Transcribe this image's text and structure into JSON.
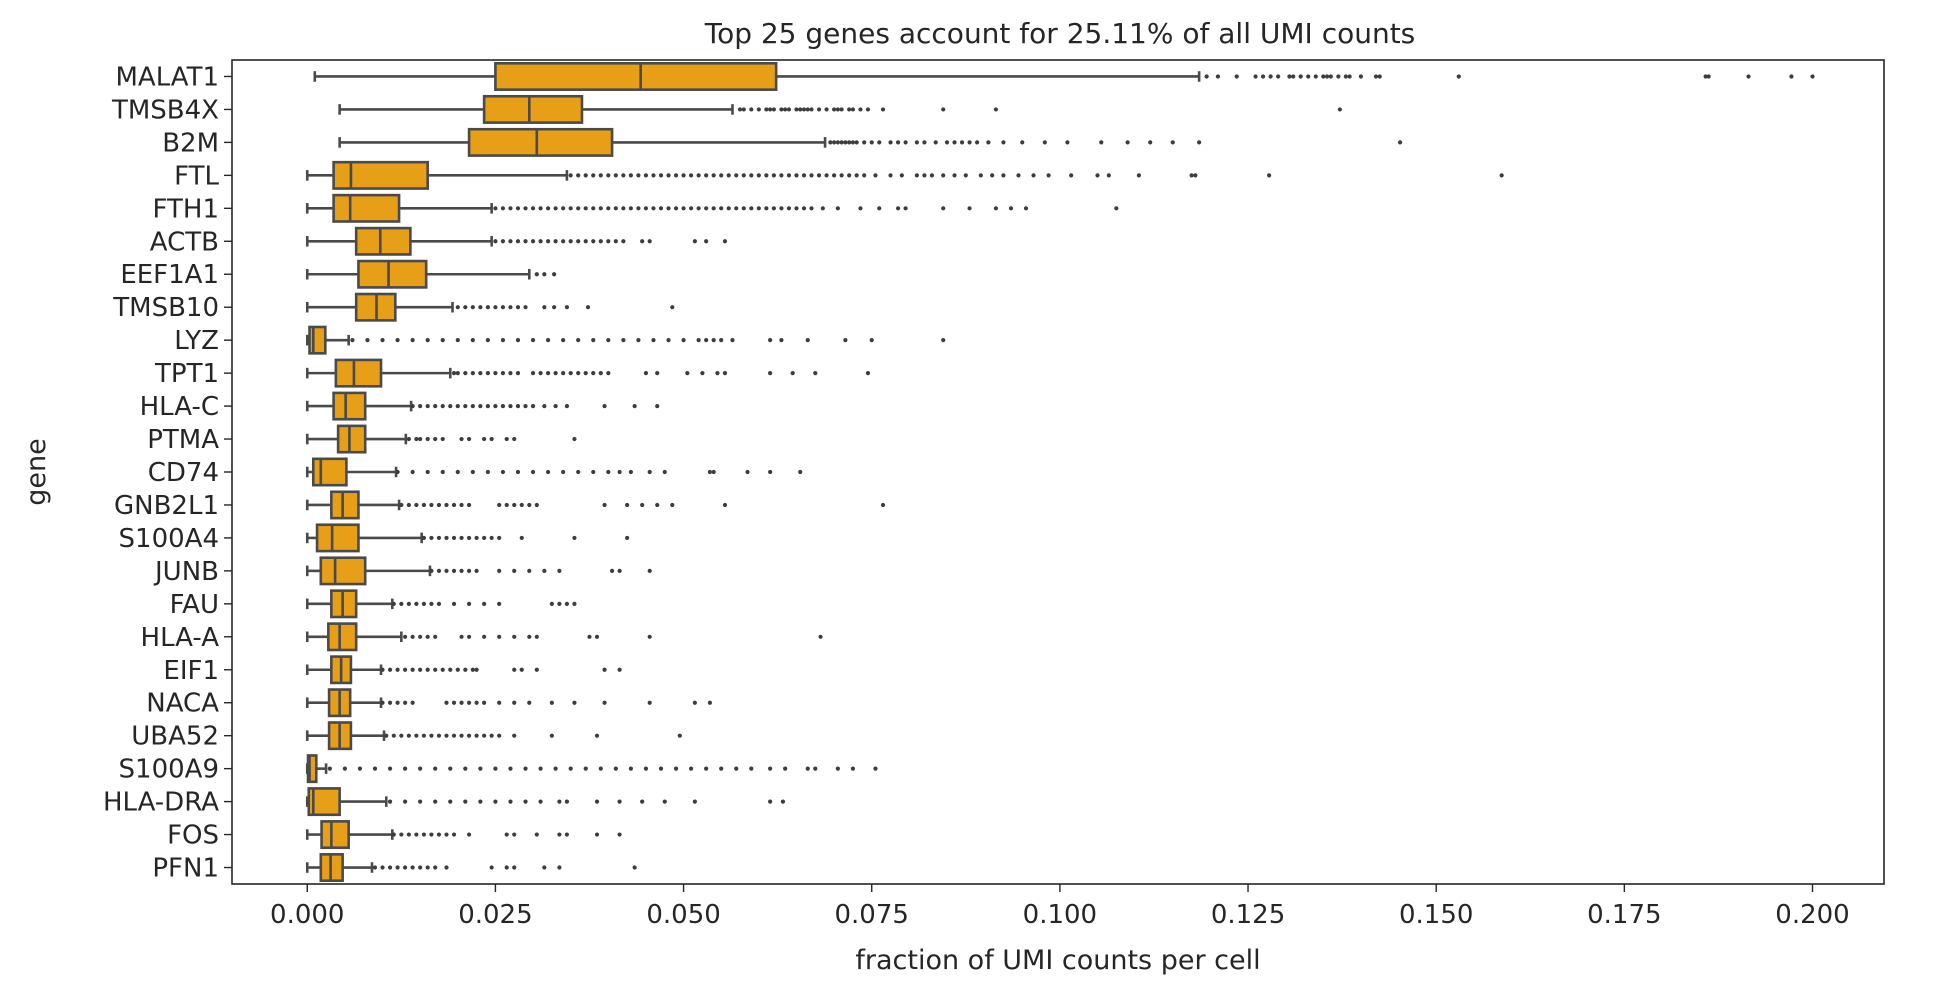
{
  "chart_data": {
    "type": "box",
    "orientation": "horizontal",
    "title": "Top 25 genes account for 25.11% of all UMI counts",
    "xlabel": "fraction of UMI counts per cell",
    "ylabel": "gene",
    "xlim": [
      -0.01,
      0.2095
    ],
    "xticks": [
      0.0,
      0.025,
      0.05,
      0.075,
      0.1,
      0.125,
      0.15,
      0.175,
      0.2
    ],
    "xtick_labels": [
      "0.000",
      "0.025",
      "0.050",
      "0.075",
      "0.100",
      "0.125",
      "0.150",
      "0.175",
      "0.200"
    ],
    "grid": false,
    "legend": "none",
    "colors": {
      "box_fill": "#e69f16",
      "box_edge": "#4a4a4a",
      "outlier": "#3d3d3d"
    },
    "series": [
      {
        "gene": "MALAT1",
        "whisker_low": 0.001,
        "q1": 0.025,
        "median": 0.0443,
        "q3": 0.0623,
        "whisker_high": 0.1185,
        "outliers": [
          0.1195,
          0.121,
          0.1235,
          0.126,
          0.127,
          0.128,
          0.129,
          0.1305,
          0.131,
          0.132,
          0.133,
          0.134,
          0.135,
          0.1355,
          0.136,
          0.137,
          0.138,
          0.1385,
          0.14,
          0.142,
          0.1425,
          0.153,
          0.1858,
          0.1862,
          0.1915,
          0.1972,
          0.2
        ]
      },
      {
        "gene": "TMSB4X",
        "whisker_low": 0.0043,
        "q1": 0.0235,
        "median": 0.0295,
        "q3": 0.0365,
        "whisker_high": 0.0565,
        "outliers": [
          0.0575,
          0.058,
          0.059,
          0.06,
          0.061,
          0.0615,
          0.062,
          0.063,
          0.0635,
          0.064,
          0.065,
          0.0655,
          0.066,
          0.0665,
          0.067,
          0.068,
          0.069,
          0.07,
          0.0705,
          0.071,
          0.072,
          0.0725,
          0.0735,
          0.0745,
          0.0765,
          0.0845,
          0.0915,
          0.1372
        ]
      },
      {
        "gene": "B2M",
        "whisker_low": 0.0043,
        "q1": 0.0215,
        "median": 0.0305,
        "q3": 0.0405,
        "whisker_high": 0.0688,
        "outliers": [
          0.0695,
          0.07,
          0.0705,
          0.071,
          0.0715,
          0.072,
          0.0725,
          0.073,
          0.074,
          0.075,
          0.076,
          0.0775,
          0.0785,
          0.0795,
          0.081,
          0.082,
          0.0835,
          0.085,
          0.086,
          0.087,
          0.088,
          0.089,
          0.0905,
          0.0925,
          0.095,
          0.098,
          0.101,
          0.1055,
          0.109,
          0.112,
          0.115,
          0.1185,
          0.1452
        ]
      },
      {
        "gene": "FTL",
        "whisker_low": 0.0,
        "q1": 0.0035,
        "median": 0.0058,
        "q3": 0.016,
        "whisker_high": 0.0345,
        "outliers": [
          0.035,
          0.036,
          0.037,
          0.038,
          0.039,
          0.04,
          0.041,
          0.042,
          0.043,
          0.044,
          0.045,
          0.046,
          0.047,
          0.048,
          0.049,
          0.05,
          0.051,
          0.052,
          0.053,
          0.054,
          0.055,
          0.056,
          0.057,
          0.058,
          0.059,
          0.06,
          0.061,
          0.062,
          0.063,
          0.064,
          0.065,
          0.066,
          0.067,
          0.068,
          0.069,
          0.07,
          0.071,
          0.072,
          0.073,
          0.074,
          0.0755,
          0.0775,
          0.079,
          0.081,
          0.082,
          0.083,
          0.0845,
          0.086,
          0.0875,
          0.0895,
          0.091,
          0.0925,
          0.0945,
          0.0965,
          0.0985,
          0.1015,
          0.105,
          0.1065,
          0.1105,
          0.1175,
          0.118,
          0.1278,
          0.1587
        ]
      },
      {
        "gene": "FTH1",
        "whisker_low": 0.0,
        "q1": 0.0035,
        "median": 0.0057,
        "q3": 0.0122,
        "whisker_high": 0.0245,
        "outliers": [
          0.025,
          0.026,
          0.027,
          0.028,
          0.029,
          0.03,
          0.031,
          0.032,
          0.033,
          0.034,
          0.035,
          0.036,
          0.037,
          0.038,
          0.039,
          0.04,
          0.041,
          0.042,
          0.043,
          0.044,
          0.045,
          0.046,
          0.047,
          0.048,
          0.049,
          0.05,
          0.051,
          0.052,
          0.053,
          0.054,
          0.055,
          0.056,
          0.057,
          0.058,
          0.059,
          0.06,
          0.061,
          0.062,
          0.063,
          0.064,
          0.065,
          0.066,
          0.067,
          0.0685,
          0.0705,
          0.0735,
          0.076,
          0.0785,
          0.0795,
          0.0845,
          0.088,
          0.0915,
          0.0935,
          0.0955,
          0.1075
        ]
      },
      {
        "gene": "ACTB",
        "whisker_low": 0.0,
        "q1": 0.0065,
        "median": 0.0097,
        "q3": 0.0137,
        "whisker_high": 0.0245,
        "outliers": [
          0.025,
          0.026,
          0.027,
          0.028,
          0.029,
          0.03,
          0.031,
          0.032,
          0.033,
          0.034,
          0.035,
          0.036,
          0.037,
          0.038,
          0.039,
          0.04,
          0.041,
          0.042,
          0.0445,
          0.0455,
          0.0515,
          0.053,
          0.0555
        ]
      },
      {
        "gene": "EEF1A1",
        "whisker_low": 0.0,
        "q1": 0.0068,
        "median": 0.0108,
        "q3": 0.0158,
        "whisker_high": 0.0295,
        "outliers": [
          0.0305,
          0.0315,
          0.0328
        ]
      },
      {
        "gene": "TMSB10",
        "whisker_low": 0.0,
        "q1": 0.0065,
        "median": 0.0092,
        "q3": 0.0117,
        "whisker_high": 0.0193,
        "outliers": [
          0.02,
          0.021,
          0.022,
          0.023,
          0.024,
          0.025,
          0.026,
          0.027,
          0.028,
          0.029,
          0.0315,
          0.0328,
          0.0345,
          0.0373,
          0.0485
        ]
      },
      {
        "gene": "LYZ",
        "whisker_low": 0.0,
        "q1": 0.0003,
        "median": 0.0008,
        "q3": 0.0024,
        "whisker_high": 0.0055,
        "outliers": [
          0.006,
          0.008,
          0.01,
          0.012,
          0.014,
          0.016,
          0.018,
          0.02,
          0.022,
          0.024,
          0.026,
          0.028,
          0.03,
          0.032,
          0.034,
          0.036,
          0.038,
          0.04,
          0.042,
          0.044,
          0.046,
          0.048,
          0.05,
          0.052,
          0.053,
          0.054,
          0.055,
          0.0565,
          0.0615,
          0.063,
          0.0665,
          0.0715,
          0.075,
          0.0845
        ]
      },
      {
        "gene": "TPT1",
        "whisker_low": 0.0,
        "q1": 0.0038,
        "median": 0.0062,
        "q3": 0.0098,
        "whisker_high": 0.019,
        "outliers": [
          0.0195,
          0.02,
          0.021,
          0.022,
          0.023,
          0.024,
          0.025,
          0.026,
          0.027,
          0.028,
          0.03,
          0.031,
          0.032,
          0.033,
          0.034,
          0.035,
          0.036,
          0.037,
          0.038,
          0.039,
          0.04,
          0.045,
          0.0465,
          0.0505,
          0.0525,
          0.0545,
          0.0555,
          0.0615,
          0.0645,
          0.0675,
          0.0745
        ]
      },
      {
        "gene": "HLA-C",
        "whisker_low": 0.0,
        "q1": 0.0035,
        "median": 0.0051,
        "q3": 0.0077,
        "whisker_high": 0.0138,
        "outliers": [
          0.014,
          0.015,
          0.016,
          0.017,
          0.018,
          0.019,
          0.02,
          0.021,
          0.022,
          0.023,
          0.024,
          0.025,
          0.026,
          0.027,
          0.028,
          0.029,
          0.03,
          0.0315,
          0.033,
          0.0345,
          0.0395,
          0.0435,
          0.0465
        ]
      },
      {
        "gene": "PTMA",
        "whisker_low": 0.0,
        "q1": 0.0041,
        "median": 0.0056,
        "q3": 0.0077,
        "whisker_high": 0.0131,
        "outliers": [
          0.0135,
          0.0145,
          0.015,
          0.016,
          0.017,
          0.018,
          0.0205,
          0.0215,
          0.0235,
          0.0245,
          0.0265,
          0.0275,
          0.0355
        ]
      },
      {
        "gene": "CD74",
        "whisker_low": 0.0,
        "q1": 0.0008,
        "median": 0.0018,
        "q3": 0.0052,
        "whisker_high": 0.0118,
        "outliers": [
          0.012,
          0.014,
          0.016,
          0.018,
          0.02,
          0.022,
          0.024,
          0.026,
          0.028,
          0.03,
          0.032,
          0.034,
          0.036,
          0.038,
          0.04,
          0.0415,
          0.043,
          0.0455,
          0.0475,
          0.0535,
          0.054,
          0.0585,
          0.0615,
          0.0655
        ]
      },
      {
        "gene": "GNB2L1",
        "whisker_low": 0.0,
        "q1": 0.0032,
        "median": 0.0047,
        "q3": 0.0068,
        "whisker_high": 0.0122,
        "outliers": [
          0.0125,
          0.0135,
          0.0145,
          0.0155,
          0.0165,
          0.0175,
          0.0185,
          0.0195,
          0.0205,
          0.0215,
          0.0255,
          0.0265,
          0.0275,
          0.0285,
          0.0295,
          0.0305,
          0.0395,
          0.0425,
          0.0445,
          0.0465,
          0.0485,
          0.0555,
          0.0765
        ]
      },
      {
        "gene": "S100A4",
        "whisker_low": 0.0,
        "q1": 0.0013,
        "median": 0.0033,
        "q3": 0.0068,
        "whisker_high": 0.0152,
        "outliers": [
          0.0155,
          0.0165,
          0.0175,
          0.0185,
          0.0195,
          0.0205,
          0.0215,
          0.0225,
          0.0235,
          0.0245,
          0.0255,
          0.0285,
          0.0355,
          0.0425
        ]
      },
      {
        "gene": "JUNB",
        "whisker_low": 0.0,
        "q1": 0.0018,
        "median": 0.0037,
        "q3": 0.0077,
        "whisker_high": 0.0163,
        "outliers": [
          0.0165,
          0.0175,
          0.0185,
          0.0195,
          0.0205,
          0.0215,
          0.0225,
          0.0255,
          0.0275,
          0.0295,
          0.0315,
          0.0335,
          0.0405,
          0.0415,
          0.0455
        ]
      },
      {
        "gene": "FAU",
        "whisker_low": 0.0,
        "q1": 0.0032,
        "median": 0.0047,
        "q3": 0.0065,
        "whisker_high": 0.0113,
        "outliers": [
          0.0115,
          0.0125,
          0.0135,
          0.0145,
          0.0155,
          0.0165,
          0.0175,
          0.0195,
          0.0215,
          0.0235,
          0.0255,
          0.0325,
          0.0335,
          0.0345,
          0.0355
        ]
      },
      {
        "gene": "HLA-A",
        "whisker_low": 0.0,
        "q1": 0.0028,
        "median": 0.0043,
        "q3": 0.0065,
        "whisker_high": 0.0125,
        "outliers": [
          0.013,
          0.014,
          0.015,
          0.016,
          0.017,
          0.0205,
          0.0215,
          0.0235,
          0.0255,
          0.0275,
          0.0295,
          0.0305,
          0.0375,
          0.0385,
          0.0455,
          0.0682
        ]
      },
      {
        "gene": "EIF1",
        "whisker_low": 0.0,
        "q1": 0.0032,
        "median": 0.0045,
        "q3": 0.0058,
        "whisker_high": 0.0098,
        "outliers": [
          0.01,
          0.011,
          0.012,
          0.013,
          0.014,
          0.015,
          0.016,
          0.017,
          0.018,
          0.019,
          0.02,
          0.021,
          0.022,
          0.0225,
          0.0275,
          0.0285,
          0.0305,
          0.0395,
          0.0415
        ]
      },
      {
        "gene": "NACA",
        "whisker_low": 0.0,
        "q1": 0.0029,
        "median": 0.0043,
        "q3": 0.0057,
        "whisker_high": 0.0098,
        "outliers": [
          0.01,
          0.011,
          0.012,
          0.013,
          0.014,
          0.0185,
          0.0195,
          0.0205,
          0.0215,
          0.0225,
          0.0235,
          0.0255,
          0.0275,
          0.0295,
          0.0325,
          0.0355,
          0.0395,
          0.0455,
          0.0515,
          0.0535
        ]
      },
      {
        "gene": "UBA52",
        "whisker_low": 0.0,
        "q1": 0.0029,
        "median": 0.0043,
        "q3": 0.0058,
        "whisker_high": 0.0102,
        "outliers": [
          0.0105,
          0.0115,
          0.0125,
          0.0135,
          0.0145,
          0.0155,
          0.0165,
          0.0175,
          0.0185,
          0.0195,
          0.0205,
          0.0215,
          0.0225,
          0.0235,
          0.0245,
          0.0255,
          0.0275,
          0.0325,
          0.0385,
          0.0495
        ]
      },
      {
        "gene": "S100A9",
        "whisker_low": 0.0,
        "q1": 0.0001,
        "median": 0.0003,
        "q3": 0.0012,
        "whisker_high": 0.0025,
        "outliers": [
          0.003,
          0.005,
          0.007,
          0.009,
          0.011,
          0.013,
          0.015,
          0.017,
          0.019,
          0.021,
          0.023,
          0.025,
          0.027,
          0.029,
          0.031,
          0.033,
          0.035,
          0.037,
          0.039,
          0.041,
          0.043,
          0.045,
          0.047,
          0.049,
          0.051,
          0.053,
          0.055,
          0.057,
          0.059,
          0.0615,
          0.0635,
          0.0665,
          0.0675,
          0.0705,
          0.0725,
          0.0755
        ]
      },
      {
        "gene": "HLA-DRA",
        "whisker_low": 0.0,
        "q1": 0.0002,
        "median": 0.0008,
        "q3": 0.0043,
        "whisker_high": 0.0105,
        "outliers": [
          0.011,
          0.013,
          0.015,
          0.017,
          0.019,
          0.021,
          0.023,
          0.025,
          0.027,
          0.029,
          0.031,
          0.0335,
          0.0345,
          0.0385,
          0.0415,
          0.0445,
          0.0475,
          0.0515,
          0.0615,
          0.0632
        ]
      },
      {
        "gene": "FOS",
        "whisker_low": 0.0,
        "q1": 0.0019,
        "median": 0.0032,
        "q3": 0.0055,
        "whisker_high": 0.0113,
        "outliers": [
          0.0115,
          0.0125,
          0.0135,
          0.0145,
          0.0155,
          0.0165,
          0.0175,
          0.0185,
          0.0195,
          0.0215,
          0.0265,
          0.0275,
          0.0305,
          0.0335,
          0.0345,
          0.0385,
          0.0415
        ]
      },
      {
        "gene": "PFN1",
        "whisker_low": 0.0,
        "q1": 0.0018,
        "median": 0.0031,
        "q3": 0.0047,
        "whisker_high": 0.0086,
        "outliers": [
          0.009,
          0.01,
          0.011,
          0.012,
          0.013,
          0.014,
          0.015,
          0.016,
          0.017,
          0.0185,
          0.0245,
          0.0265,
          0.0275,
          0.0315,
          0.0335,
          0.0435
        ]
      }
    ]
  }
}
